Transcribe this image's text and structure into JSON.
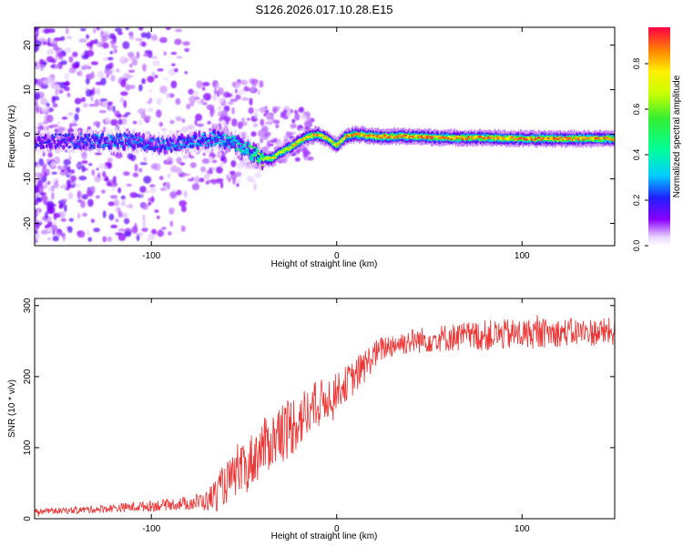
{
  "title": "S126.2026.017.10.28.E15",
  "chart_data": [
    {
      "type": "heatmap",
      "xlabel": "Height of straight line (km)",
      "ylabel": "Frequency (Hz)",
      "xlim": [
        -163,
        150
      ],
      "ylim": [
        -25,
        24
      ],
      "x_ticks": [
        -100,
        0,
        100
      ],
      "y_ticks": [
        20,
        10,
        0,
        -10,
        -20
      ],
      "colorbar": {
        "label": "Normalized spectral amplitude",
        "range": [
          0.0,
          0.96
        ],
        "ticks": [
          0.0,
          0.2,
          0.4,
          0.6,
          0.8
        ]
      },
      "ridge": {
        "x": [
          -163,
          -140,
          -125,
          -110,
          -95,
          -85,
          -75,
          -65,
          -58,
          -52,
          -46,
          -40,
          -35,
          -30,
          -25,
          -20,
          -15,
          -10,
          -5,
          0,
          5,
          10,
          20,
          40,
          60,
          80,
          100,
          120,
          150
        ],
        "freq": [
          -1.5,
          -1.5,
          -1.5,
          -1.5,
          -2.5,
          -2.0,
          -1.5,
          -1.0,
          -1.5,
          -2.5,
          -4.0,
          -5.5,
          -5.5,
          -4.0,
          -3.0,
          -1.5,
          -0.5,
          0.0,
          -1.0,
          -2.5,
          -0.5,
          0.0,
          -0.5,
          -0.5,
          -0.8,
          -0.8,
          -1.0,
          -1.0,
          -1.0
        ],
        "amp": [
          0.2,
          0.25,
          0.3,
          0.3,
          0.28,
          0.3,
          0.32,
          0.35,
          0.4,
          0.45,
          0.55,
          0.72,
          0.8,
          0.78,
          0.8,
          0.82,
          0.85,
          0.88,
          0.8,
          0.8,
          0.85,
          0.9,
          0.92,
          0.92,
          0.9,
          0.9,
          0.92,
          0.92,
          0.92
        ]
      }
    },
    {
      "type": "line",
      "xlabel": "Height of straight line (km)",
      "ylabel": "SNR (10 * v/v)",
      "xlim": [
        -163,
        150
      ],
      "ylim": [
        0,
        310
      ],
      "x_ticks": [
        -100,
        0,
        100
      ],
      "y_ticks": [
        0,
        100,
        200,
        300
      ],
      "series": [
        {
          "name": "SNR",
          "color": "#ee3333",
          "x": [
            -163,
            -140,
            -120,
            -100,
            -90,
            -80,
            -70,
            -65,
            -60,
            -55,
            -50,
            -45,
            -40,
            -35,
            -30,
            -25,
            -20,
            -15,
            -10,
            -5,
            0,
            5,
            10,
            15,
            20,
            25,
            30,
            40,
            60,
            80,
            100,
            120,
            150
          ],
          "trend": [
            10,
            12,
            15,
            18,
            20,
            22,
            25,
            35,
            50,
            60,
            70,
            85,
            100,
            110,
            120,
            130,
            140,
            150,
            160,
            170,
            180,
            190,
            200,
            215,
            230,
            240,
            245,
            250,
            255,
            258,
            260,
            262,
            263
          ],
          "noise": [
            4,
            5,
            6,
            8,
            8,
            10,
            15,
            25,
            30,
            30,
            35,
            40,
            40,
            40,
            45,
            45,
            40,
            40,
            35,
            30,
            25,
            25,
            25,
            25,
            20,
            18,
            18,
            18,
            20,
            22,
            22,
            20,
            20
          ]
        }
      ]
    }
  ]
}
